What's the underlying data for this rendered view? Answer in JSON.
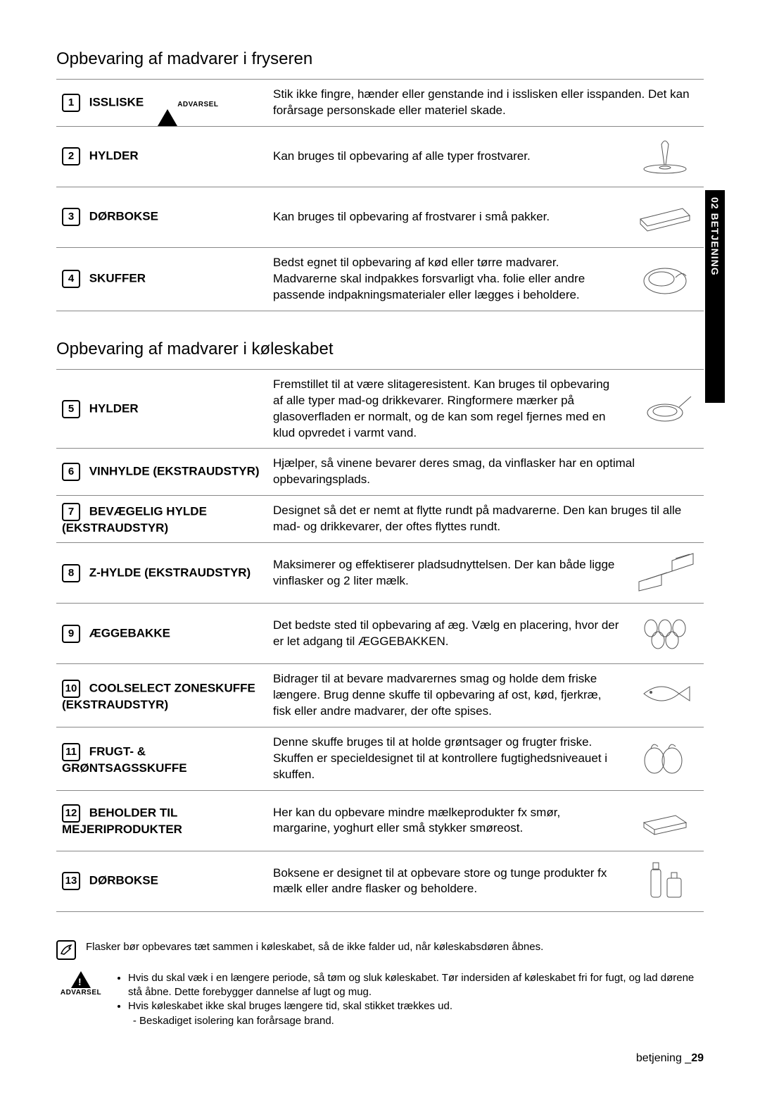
{
  "sideTab": "02 BETJENING",
  "section1": {
    "title": "Opbevaring af madvarer i fryseren",
    "rows": [
      {
        "num": "1",
        "label": "ISSLISKE",
        "warn": "ADVARSEL",
        "desc": "Stik ikke fingre, hænder eller genstande ind i isslisken eller isspanden. Det kan forårsage personskade eller materiel skade.",
        "img": false
      },
      {
        "num": "2",
        "label": "HYLDER",
        "desc": "Kan bruges til opbevaring af alle typer frostvarer.",
        "img": true,
        "svg": "goblet"
      },
      {
        "num": "3",
        "label": "DØRBOKSE",
        "desc": "Kan bruges til opbevaring af frostvarer i små pakker.",
        "img": true,
        "svg": "tray"
      },
      {
        "num": "4",
        "label": "SKUFFER",
        "desc": "Bedst egnet til opbevaring af kød eller tørre madvarer. Madvarerne skal indpakkes forsvarligt vha. folie eller andre passende indpakningsmaterialer eller lægges i beholdere.",
        "img": true,
        "svg": "meat"
      }
    ]
  },
  "section2": {
    "title": "Opbevaring af madvarer i køleskabet",
    "rows": [
      {
        "num": "5",
        "label": "HYLDER",
        "desc": "Fremstillet til at være slitageresistent. Kan bruges til opbevaring af alle typer mad-og drikkevarer. Ringformere mærker på glasoverfladen er normalt, og de kan som regel fjernes med en klud opvredet i varmt vand.",
        "img": true,
        "svg": "frying"
      },
      {
        "num": "6",
        "label": "VINHYLDE (EKSTRAUDSTYR)",
        "desc": "Hjælper, så vinene bevarer deres smag, da vinflasker har en optimal opbevaringsplads.",
        "img": false
      },
      {
        "num": "7",
        "label": "BEVÆGELIG HYLDE (EKSTRAUDSTYR)",
        "desc": "Designet så det er nemt at flytte rundt på madvarerne. Den kan bruges til alle mad- og drikkevarer, der oftes flyttes rundt.",
        "img": false
      },
      {
        "num": "8",
        "label": "Z-HYLDE (EKSTRAUDSTYR)",
        "desc": "Maksimerer og effektiserer pladsudnyttelsen. Der kan både ligge vinflasker og 2 liter mælk.",
        "img": true,
        "svg": "zshelf"
      },
      {
        "num": "9",
        "label": "ÆGGEBAKKE",
        "desc": "Det bedste sted til opbevaring af æg. Vælg en placering, hvor der er let adgang til ÆGGEBAKKEN.",
        "img": true,
        "svg": "eggs"
      },
      {
        "num": "10",
        "label": "COOLSELECT ZONESKUFFE (EKSTRAUDSTYR)",
        "desc": "Bidrager til at bevare madvarernes smag og holde dem friske længere. Brug denne skuffe til opbevaring af ost, kød, fjerkræ, fisk eller andre madvarer, der ofte spises.",
        "img": true,
        "svg": "fish"
      },
      {
        "num": "11",
        "label": "FRUGT- & GRØNTSAGSSKUFFE",
        "desc": "Denne skuffe bruges til at holde grøntsager og frugter friske. Skuffen er specieldesignet til at kontrollere fugtighedsniveauet i skuffen.",
        "img": true,
        "svg": "veg"
      },
      {
        "num": "12",
        "label": "BEHOLDER TIL MEJERIPRODUKTER",
        "desc": "Her kan du opbevare mindre mælkeprodukter fx smør, margarine, yoghurt eller små stykker smøreost.",
        "img": true,
        "svg": "butter"
      },
      {
        "num": "13",
        "label": "DØRBOKSE",
        "desc": "Boksene er designet til at opbevare store og tunge produkter fx mælk eller andre flasker og beholdere.",
        "img": true,
        "svg": "bottles"
      }
    ]
  },
  "note": "Flasker bør opbevares tæt sammen i køleskabet, så de ikke falder ud, når køleskabsdøren åbnes.",
  "warnings": {
    "label": "ADVARSEL",
    "bullets": [
      "Hvis du skal væk i en længere periode, så tøm og sluk køleskabet. Tør indersiden af køleskabet fri for fugt, og lad dørene stå åbne. Dette forebygger dannelse af lugt og mug.",
      "Hvis køleskabet ikke skal bruges længere tid, skal stikket trækkes ud."
    ],
    "sub": "Beskadiget isolering kan forårsage brand."
  },
  "footer": {
    "label": "betjening _",
    "page": "29"
  },
  "svgs": {
    "goblet": "<svg viewBox='0 0 90 60'><ellipse cx='45' cy='50' rx='30' ry='6' fill='none' stroke='#555'/><path d='M44 44 L40 15 Q45 5 50 15 L46 44 Z' fill='none' stroke='#555'/><ellipse cx='45' cy='48' rx='8' ry='2' fill='none' stroke='#555'/></svg>",
    "tray": "<svg viewBox='0 0 90 60'><path d='M10 35 L70 20 L80 30 L20 45 Z' fill='none' stroke='#555'/><path d='M10 35 L10 42 L20 52 L80 37 L80 30' fill='none' stroke='#555'/></svg>",
    "meat": "<svg viewBox='0 0 90 60'><ellipse cx='45' cy='35' rx='30' ry='18' fill='none' stroke='#555'/><ellipse cx='40' cy='32' rx='18' ry='10' fill='none' stroke='#555'/><path d='M60 30 Q70 20 75 28' fill='none' stroke='#555'/></svg>",
    "frying": "<svg viewBox='0 0 90 60'><ellipse cx='45' cy='38' rx='25' ry='12' fill='none' stroke='#555'/><ellipse cx='45' cy='36' rx='17' ry='7' fill='none' stroke='#555'/><path d='M65 30 L82 15' stroke='#555'/></svg>",
    "zshelf": "<svg viewBox='0 0 90 60'><path d='M8 45 L55 30 L55 15 L85 5 L85 20 L40 35 L40 50 L8 58 Z' fill='none' stroke='#555'/><line x1='18' y1='42' x2='48' y2='32' stroke='#555'/><line x1='60' y1='12' x2='80' y2='6' stroke='#555'/></svg>",
    "eggs": "<svg viewBox='0 0 90 60'><ellipse cx='25' cy='25' rx='9' ry='12' fill='none' stroke='#555'/><ellipse cx='45' cy='25' rx='9' ry='12' fill='none' stroke='#555'/><ellipse cx='65' cy='25' rx='9' ry='12' fill='none' stroke='#555'/><ellipse cx='35' cy='42' rx='9' ry='12' fill='none' stroke='#555'/><ellipse cx='55' cy='42' rx='9' ry='12' fill='none' stroke='#555'/></svg>",
    "fish": "<svg viewBox='0 0 90 60'><path d='M15 30 Q40 10 65 30 Q40 50 15 30 Z' fill='none' stroke='#555'/><path d='M65 30 L80 20 L80 40 Z' fill='none' stroke='#555'/><circle cx='25' cy='28' r='2' fill='#555'/></svg>",
    "veg": "<svg viewBox='0 0 90 60'><ellipse cx='30' cy='35' rx='14' ry='18' fill='none' stroke='#555'/><ellipse cx='55' cy='35' rx='14' ry='18' fill='none' stroke='#555'/><path d='M25 18 Q28 8 35 15 M50 18 Q53 8 60 15' fill='none' stroke='#555'/></svg>",
    "butter": "<svg viewBox='0 0 90 60'><path d='M15 35 L60 25 L75 35 L30 45 Z' fill='none' stroke='#555'/><path d='M15 35 L15 42 L30 52 L75 42 L75 35' fill='none' stroke='#555'/><path d='M30 45 L30 52' stroke='#555'/></svg>",
    "bottles": "<svg viewBox='0 0 90 60'><rect x='25' y='15' width='14' height='40' rx='4' fill='none' stroke='#555'/><rect x='28' y='6' width='8' height='10' fill='none' stroke='#555'/><rect x='48' y='28' width='20' height='27' rx='3' fill='none' stroke='#555'/><rect x='54' y='20' width='8' height='8' fill='none' stroke='#555'/></svg>"
  }
}
